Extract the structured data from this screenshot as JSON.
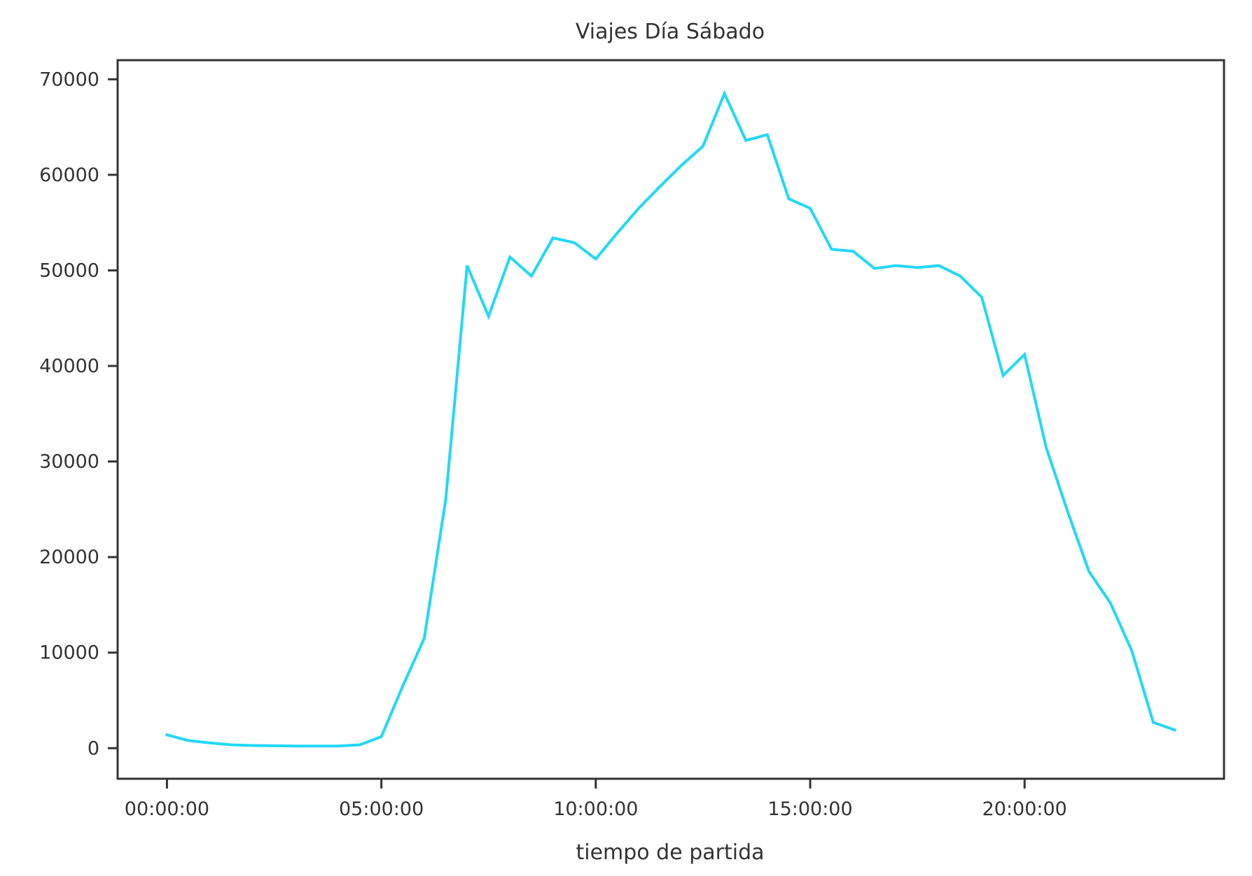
{
  "chart_data": {
    "type": "line",
    "title": "Viajes Día Sábado",
    "xlabel": "tiempo de partida",
    "ylabel": "",
    "x_unit": "hours",
    "xlim": [
      -1.15,
      24.65
    ],
    "ylim": [
      -3200,
      72000
    ],
    "x_ticks": [
      {
        "value": 0,
        "label": "00:00:00"
      },
      {
        "value": 5,
        "label": "05:00:00"
      },
      {
        "value": 10,
        "label": "10:00:00"
      },
      {
        "value": 15,
        "label": "15:00:00"
      },
      {
        "value": 20,
        "label": "20:00:00"
      }
    ],
    "y_ticks": [
      {
        "value": 0,
        "label": "0"
      },
      {
        "value": 10000,
        "label": "10000"
      },
      {
        "value": 20000,
        "label": "20000"
      },
      {
        "value": 30000,
        "label": "30000"
      },
      {
        "value": 40000,
        "label": "40000"
      },
      {
        "value": 50000,
        "label": "50000"
      },
      {
        "value": 60000,
        "label": "60000"
      },
      {
        "value": 70000,
        "label": "70000"
      }
    ],
    "grid": false,
    "series": [
      {
        "color": "#22d8f7",
        "x": [
          0,
          0.5,
          1,
          1.5,
          2,
          2.5,
          3,
          3.5,
          4,
          4.5,
          5,
          5.5,
          6,
          6.5,
          7,
          7.5,
          8,
          8.5,
          9,
          9.5,
          10,
          10.5,
          11,
          11.5,
          12,
          12.5,
          13,
          13.5,
          14,
          14.5,
          15,
          15.5,
          16,
          16.5,
          17,
          17.5,
          18,
          18.5,
          19,
          19.5,
          20,
          20.5,
          21,
          21.5,
          22,
          22.5,
          23,
          23.5
        ],
        "y": [
          1400,
          800,
          550,
          350,
          280,
          250,
          230,
          220,
          230,
          350,
          1200,
          6500,
          11500,
          26000,
          50500,
          45200,
          51400,
          49400,
          53400,
          52900,
          51200,
          53900,
          56500,
          58800,
          61000,
          63000,
          68500,
          63600,
          64200,
          57500,
          56500,
          52200,
          52000,
          50200,
          50500,
          50300,
          50500,
          49400,
          47200,
          39000,
          41200,
          31500,
          24800,
          18500,
          15200,
          10200,
          2700,
          1900
        ]
      }
    ]
  }
}
